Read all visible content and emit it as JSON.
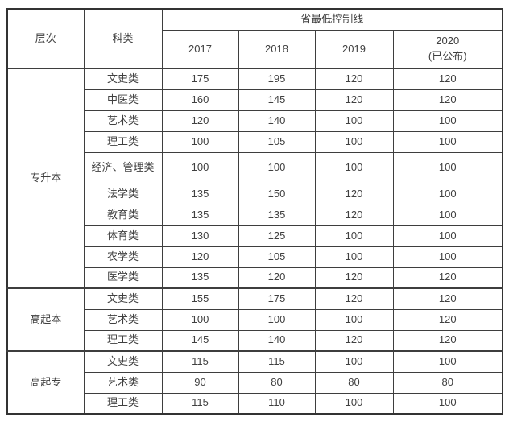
{
  "colors": {
    "background": "#ffffff",
    "border": "#3e3e3e",
    "text": "#404040"
  },
  "headers": {
    "level": "层次",
    "category": "科类",
    "group": "省最低控制线",
    "y2017": "2017",
    "y2018": "2018",
    "y2019": "2019",
    "y2020": "2020",
    "y2020_note": "(已公布)"
  },
  "chart_data": {
    "type": "table",
    "title": "省最低控制线",
    "columns": [
      "层次",
      "科类",
      "2017",
      "2018",
      "2019",
      "2020(已公布)"
    ],
    "sections": [
      {
        "level": "专升本",
        "rows": [
          {
            "category": "文史类",
            "values": [
              175,
              195,
              120,
              120
            ]
          },
          {
            "category": "中医类",
            "values": [
              160,
              145,
              120,
              120
            ]
          },
          {
            "category": "艺术类",
            "values": [
              120,
              140,
              100,
              100
            ]
          },
          {
            "category": "理工类",
            "values": [
              100,
              105,
              100,
              100
            ]
          },
          {
            "category": "经济、管理类",
            "values": [
              100,
              100,
              100,
              100
            ]
          },
          {
            "category": "法学类",
            "values": [
              135,
              150,
              120,
              100
            ]
          },
          {
            "category": "教育类",
            "values": [
              135,
              135,
              120,
              100
            ]
          },
          {
            "category": "体育类",
            "values": [
              130,
              125,
              100,
              100
            ]
          },
          {
            "category": "农学类",
            "values": [
              120,
              105,
              100,
              100
            ]
          },
          {
            "category": "医学类",
            "values": [
              135,
              120,
              120,
              120
            ]
          }
        ]
      },
      {
        "level": "高起本",
        "rows": [
          {
            "category": "文史类",
            "values": [
              155,
              175,
              120,
              120
            ]
          },
          {
            "category": "艺术类",
            "values": [
              100,
              100,
              100,
              120
            ]
          },
          {
            "category": "理工类",
            "values": [
              145,
              140,
              120,
              120
            ]
          }
        ]
      },
      {
        "level": "高起专",
        "rows": [
          {
            "category": "文史类",
            "values": [
              115,
              115,
              100,
              100
            ]
          },
          {
            "category": "艺术类",
            "values": [
              90,
              80,
              80,
              80
            ]
          },
          {
            "category": "理工类",
            "values": [
              115,
              110,
              100,
              100
            ]
          }
        ]
      }
    ]
  }
}
